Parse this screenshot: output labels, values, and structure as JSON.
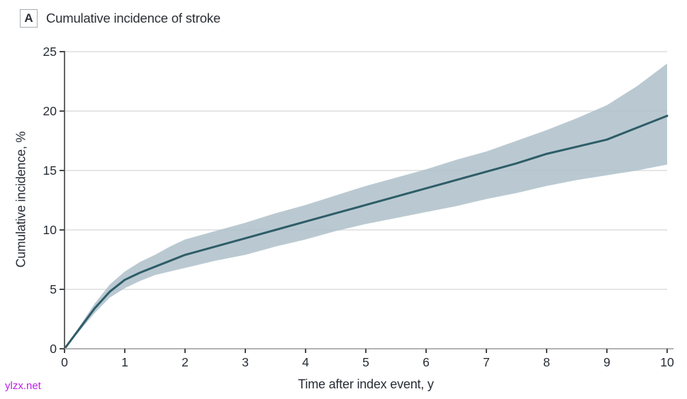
{
  "figure": {
    "panel_label": "A",
    "title": "Cumulative incidence of stroke"
  },
  "watermark": {
    "text": "ylzx.net",
    "color": "#bf1fe8"
  },
  "colors": {
    "line": "#2e5d68",
    "band": "#aec0c9",
    "gridline": "#e3e3e3",
    "axis_baseline": "#b3b3b3",
    "axis_dark": "#4a4a4a",
    "tick_text": "#272d36",
    "panel_box_border": "#a7adb3"
  },
  "chart_data": {
    "type": "line",
    "title": "Cumulative incidence of stroke",
    "xlabel": "Time after index event, y",
    "ylabel": "Cumulative incidence, %",
    "xlim": [
      0,
      10
    ],
    "ylim": [
      0,
      25
    ],
    "x_ticks": [
      0,
      1,
      2,
      3,
      4,
      5,
      6,
      7,
      8,
      9,
      10
    ],
    "y_ticks": [
      0,
      5,
      10,
      15,
      20,
      25
    ],
    "grid": "horizontal gridlines at each y tick",
    "legend_position": "none",
    "series": [
      {
        "name": "Cumulative incidence of stroke (point estimate)",
        "type": "line",
        "color": "#2e5d68",
        "x": [
          0,
          0.25,
          0.5,
          0.75,
          1.0,
          1.25,
          1.5,
          1.75,
          2.0,
          2.5,
          3.0,
          3.5,
          4.0,
          4.5,
          5.0,
          5.5,
          6.0,
          6.5,
          7.0,
          7.5,
          8.0,
          8.5,
          9.0,
          9.5,
          10.0
        ],
        "y": [
          0,
          1.7,
          3.4,
          4.8,
          5.8,
          6.4,
          6.9,
          7.4,
          7.9,
          8.6,
          9.3,
          10.0,
          10.7,
          11.4,
          12.1,
          12.8,
          13.5,
          14.2,
          14.9,
          15.6,
          16.4,
          17.0,
          17.6,
          18.6,
          19.6
        ]
      },
      {
        "name": "95% CI band",
        "type": "band",
        "color": "#aec0c9",
        "x": [
          0,
          0.25,
          0.5,
          0.75,
          1.0,
          1.25,
          1.5,
          1.75,
          2.0,
          2.5,
          3.0,
          3.5,
          4.0,
          4.5,
          5.0,
          5.5,
          6.0,
          6.5,
          7.0,
          7.5,
          8.0,
          8.5,
          9.0,
          9.5,
          10.0
        ],
        "lower": [
          0,
          1.5,
          3.0,
          4.3,
          5.1,
          5.7,
          6.2,
          6.5,
          6.8,
          7.4,
          7.9,
          8.6,
          9.2,
          9.9,
          10.5,
          11.0,
          11.5,
          12.0,
          12.6,
          13.1,
          13.7,
          14.2,
          14.6,
          15.0,
          15.5
        ],
        "upper": [
          0,
          1.9,
          3.8,
          5.4,
          6.5,
          7.3,
          7.9,
          8.6,
          9.2,
          9.9,
          10.6,
          11.4,
          12.1,
          12.9,
          13.7,
          14.4,
          15.1,
          15.9,
          16.6,
          17.5,
          18.4,
          19.4,
          20.5,
          22.1,
          24.0
        ]
      }
    ]
  }
}
